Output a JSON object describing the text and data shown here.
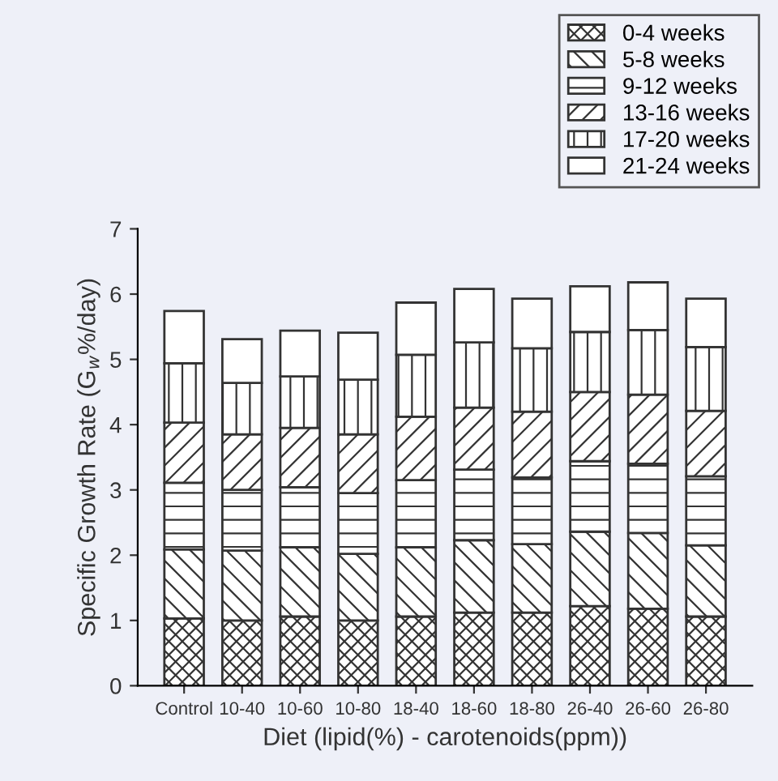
{
  "chart_data": {
    "type": "bar",
    "stacked": true,
    "xlabel": "Diet (lipid(%) - carotenoids(ppm))",
    "ylabel": "Specific Growth Rate (G$_{w}$%/day)",
    "categories": [
      "Control",
      "10-40",
      "10-60",
      "10-80",
      "18-40",
      "18-60",
      "18-80",
      "26-40",
      "26-60",
      "26-80"
    ],
    "series": [
      {
        "name": "0-4 weeks",
        "color": "#333333",
        "values": [
          1.03,
          1.0,
          1.06,
          1.0,
          1.06,
          1.12,
          1.12,
          1.22,
          1.18,
          1.06
        ]
      },
      {
        "name": "5-8 weeks",
        "color": "#333333",
        "values": [
          1.06,
          1.07,
          1.06,
          1.02,
          1.06,
          1.11,
          1.05,
          1.14,
          1.16,
          1.09
        ]
      },
      {
        "name": "9-12 weeks",
        "color": "#333333",
        "values": [
          1.02,
          0.93,
          0.92,
          0.93,
          1.03,
          1.08,
          1.02,
          1.08,
          1.06,
          1.06
        ]
      },
      {
        "name": "13-16 weeks",
        "color": "#333333",
        "values": [
          0.92,
          0.85,
          0.91,
          0.9,
          0.97,
          0.95,
          1.01,
          1.06,
          1.06,
          1.0
        ]
      },
      {
        "name": "17-20 weeks",
        "color": "#333333",
        "values": [
          0.91,
          0.79,
          0.79,
          0.84,
          0.95,
          1.0,
          0.97,
          0.92,
          0.99,
          0.98
        ]
      },
      {
        "name": "21-24 weeks",
        "color": "#ffffff",
        "values": [
          0.8,
          0.67,
          0.7,
          0.72,
          0.8,
          0.82,
          0.76,
          0.7,
          0.73,
          0.74
        ]
      }
    ],
    "ylim": [
      0,
      7
    ],
    "yticks": [
      0,
      1,
      2,
      3,
      4,
      5,
      6,
      7
    ],
    "grid": false,
    "legend": "top right"
  }
}
